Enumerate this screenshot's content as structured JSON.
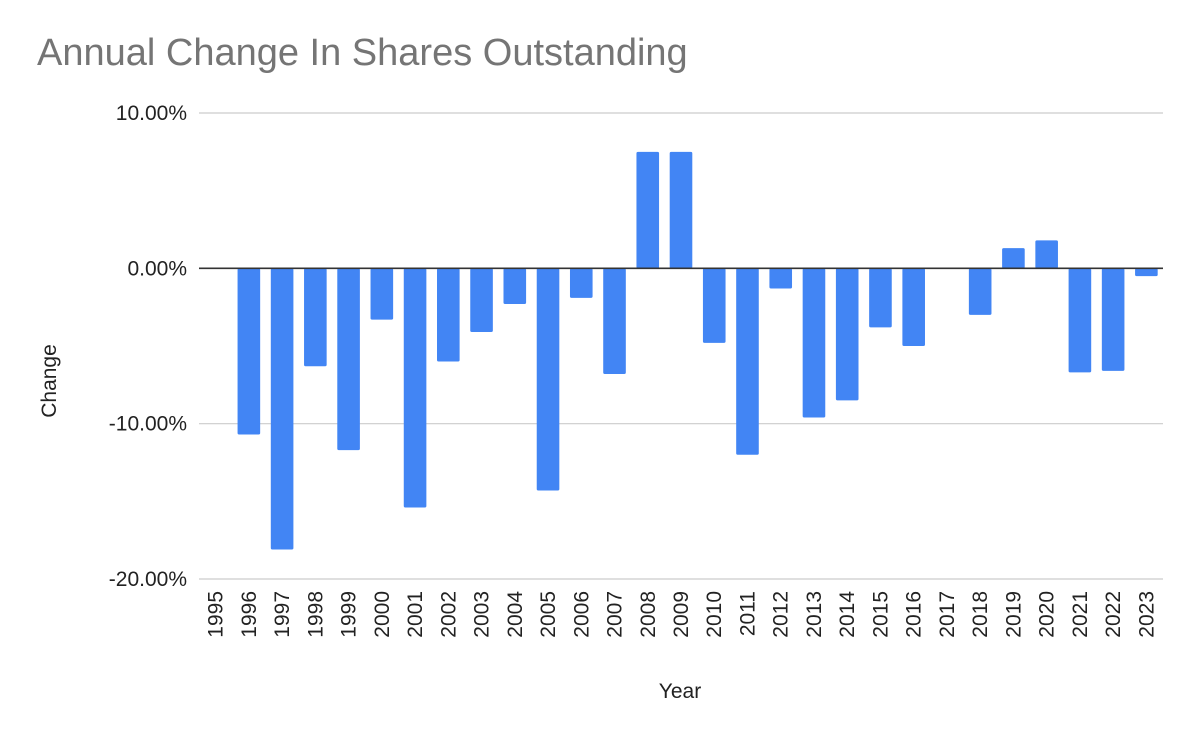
{
  "chart_data": {
    "type": "bar",
    "title": "Annual Change In Shares Outstanding",
    "xlabel": "Year",
    "ylabel": "Change",
    "ylim": [
      -20,
      10
    ],
    "yticks": [
      10,
      0,
      -10,
      -20
    ],
    "ytick_labels": [
      "10.00%",
      "0.00%",
      "-10.00%",
      "-20.00%"
    ],
    "grid": true,
    "legend": "none",
    "bar_color": "#4285f4",
    "categories": [
      "1995",
      "1996",
      "1997",
      "1998",
      "1999",
      "2000",
      "2001",
      "2002",
      "2003",
      "2004",
      "2005",
      "2006",
      "2007",
      "2008",
      "2009",
      "2010",
      "2011",
      "2012",
      "2013",
      "2014",
      "2015",
      "2016",
      "2017",
      "2018",
      "2019",
      "2020",
      "2021",
      "2022",
      "2023"
    ],
    "values": [
      0,
      -10.7,
      -18.1,
      -6.3,
      -11.7,
      -3.3,
      -15.4,
      -6.0,
      -4.1,
      -2.3,
      -14.3,
      -1.9,
      -6.8,
      7.5,
      7.5,
      -4.8,
      -12.0,
      -1.3,
      -9.6,
      -8.5,
      -3.8,
      -5.0,
      0,
      -3.0,
      1.3,
      1.8,
      -6.7,
      -6.6,
      -0.5
    ]
  }
}
